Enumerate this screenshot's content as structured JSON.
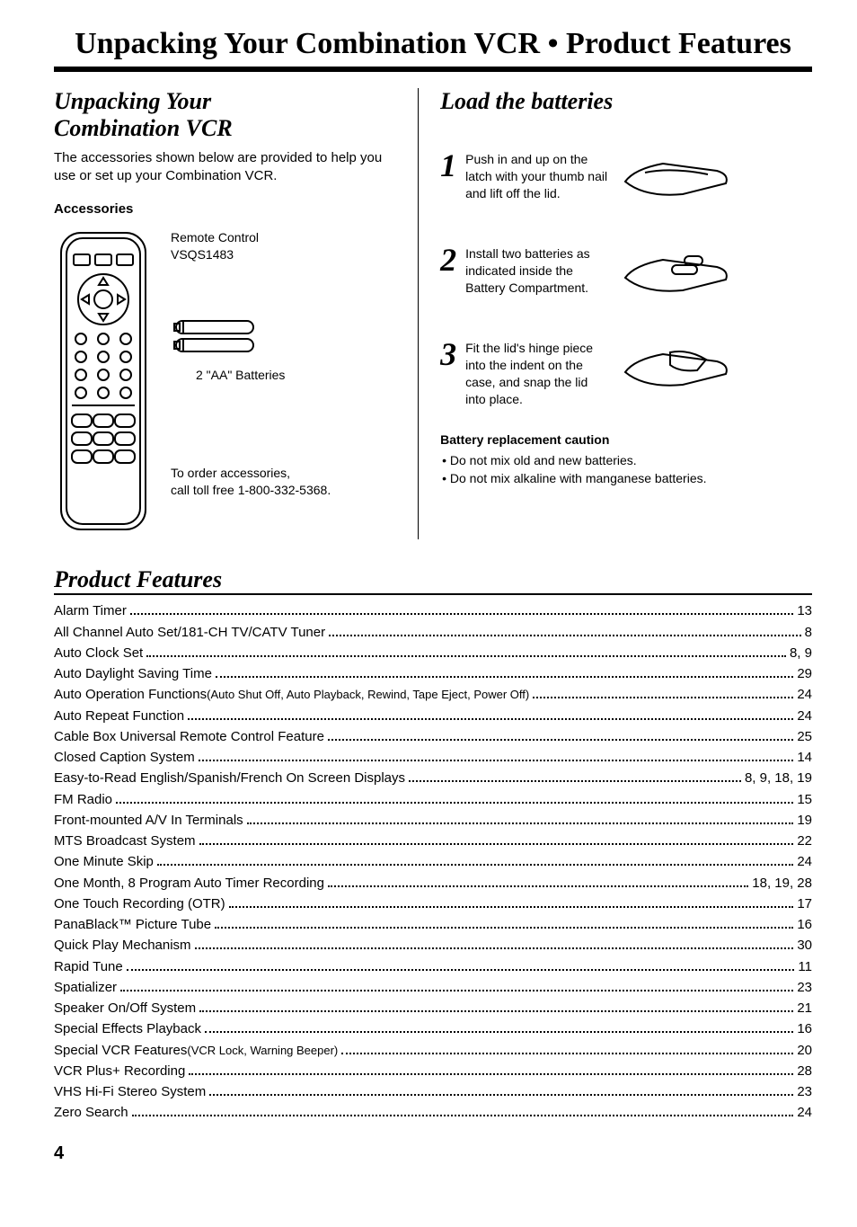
{
  "page_title": "Unpacking Your Combination VCR • Product Features",
  "left": {
    "heading_line1": "Unpacking Your",
    "heading_line2": "Combination VCR",
    "intro": "The accessories shown below are provided to help you use or set up your Combination VCR.",
    "accessories_label": "Accessories",
    "remote_label_line1": "Remote Control",
    "remote_label_line2": "VSQS1483",
    "batteries_label": "2 \"AA\" Batteries",
    "order_line1": "To order accessories,",
    "order_line2": "call toll free 1-800-332-5368."
  },
  "right": {
    "heading": "Load the batteries",
    "steps": [
      {
        "num": "1",
        "text": "Push in and up on the latch with your thumb nail and lift off the lid."
      },
      {
        "num": "2",
        "text": "Install two batteries as indicated inside the Battery Compartment."
      },
      {
        "num": "3",
        "text": "Fit the lid's hinge piece into the indent on the case, and snap the lid into place."
      }
    ],
    "caution_title": "Battery replacement caution",
    "cautions": [
      "• Do not mix old and new batteries.",
      "• Do not mix alkaline with manganese batteries."
    ]
  },
  "product_features_heading": "Product Features",
  "features": [
    {
      "label": "Alarm Timer",
      "note": "",
      "page": "13"
    },
    {
      "label": "All Channel Auto Set/181-CH TV/CATV Tuner",
      "note": "",
      "page": "8"
    },
    {
      "label": "Auto Clock Set",
      "note": "",
      "page": "8, 9"
    },
    {
      "label": "Auto Daylight Saving Time",
      "note": "",
      "page": "29"
    },
    {
      "label": "Auto Operation Functions",
      "note": " (Auto Shut Off, Auto Playback, Rewind, Tape Eject, Power Off)",
      "page": "24"
    },
    {
      "label": "Auto Repeat Function",
      "note": "",
      "page": "24"
    },
    {
      "label": "Cable Box Universal Remote Control Feature",
      "note": "",
      "page": "25"
    },
    {
      "label": "Closed Caption System",
      "note": "",
      "page": "14"
    },
    {
      "label": "Easy-to-Read English/Spanish/French On Screen Displays",
      "note": "",
      "page": "8, 9, 18, 19"
    },
    {
      "label": "FM Radio",
      "note": "",
      "page": "15"
    },
    {
      "label": "Front-mounted A/V In Terminals",
      "note": "",
      "page": "19"
    },
    {
      "label": "MTS Broadcast System",
      "note": "",
      "page": "22"
    },
    {
      "label": "One Minute Skip",
      "note": "",
      "page": "24"
    },
    {
      "label": "One Month, 8 Program Auto Timer Recording",
      "note": "",
      "page": "18, 19, 28"
    },
    {
      "label": "One Touch Recording (OTR)",
      "note": "",
      "page": "17"
    },
    {
      "label": "PanaBlack™ Picture Tube",
      "note": "",
      "page": "16"
    },
    {
      "label": "Quick Play Mechanism",
      "note": "",
      "page": "30"
    },
    {
      "label": "Rapid Tune",
      "note": "",
      "page": "11"
    },
    {
      "label": "Spatializer",
      "note": "",
      "page": "23"
    },
    {
      "label": "Speaker On/Off System",
      "note": "",
      "page": "21"
    },
    {
      "label": "Special Effects Playback",
      "note": "",
      "page": "16"
    },
    {
      "label": "Special VCR Features",
      "note": " (VCR Lock, Warning Beeper)",
      "page": "20"
    },
    {
      "label": "VCR Plus+ Recording",
      "note": "",
      "page": "28"
    },
    {
      "label": "VHS Hi-Fi Stereo System",
      "note": "",
      "page": "23"
    },
    {
      "label": "Zero Search",
      "note": "",
      "page": "24"
    }
  ],
  "page_number": "4",
  "colors": {
    "text": "#000000",
    "background": "#ffffff",
    "rule": "#000000"
  }
}
